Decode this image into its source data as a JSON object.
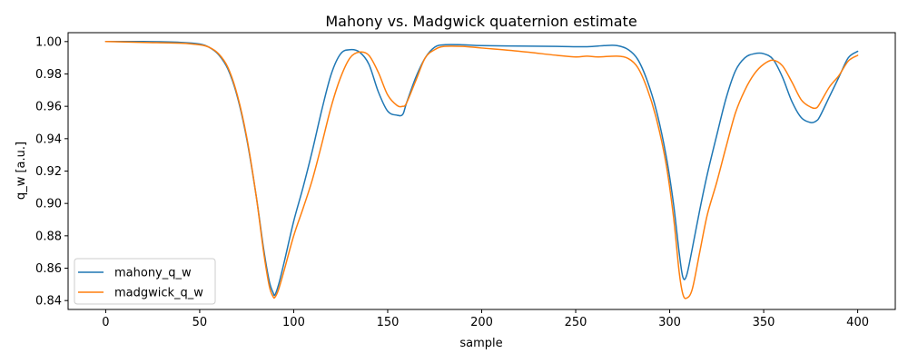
{
  "chart_data": {
    "type": "line",
    "title": "Mahony vs. Madgwick quaternion estimate",
    "xlabel": "sample",
    "ylabel": "q_w [a.u.]",
    "xlim": [
      -20,
      420
    ],
    "ylim": [
      0.8345,
      1.0055
    ],
    "xticks": [
      0,
      50,
      100,
      150,
      200,
      250,
      300,
      350,
      400
    ],
    "xtick_labels": [
      "0",
      "50",
      "100",
      "150",
      "200",
      "250",
      "300",
      "350",
      "400"
    ],
    "yticks": [
      0.84,
      0.86,
      0.88,
      0.9,
      0.92,
      0.94,
      0.96,
      0.98,
      1.0
    ],
    "ytick_labels": [
      "0.84",
      "0.86",
      "0.88",
      "0.90",
      "0.92",
      "0.94",
      "0.96",
      "0.98",
      "1.00"
    ],
    "grid": false,
    "legend_position": "lower-left",
    "series": [
      {
        "name": "mahony_q_w",
        "color": "#1f77b4",
        "x": [
          0,
          20,
          40,
          50,
          55,
          60,
          65,
          70,
          75,
          80,
          84,
          87,
          89,
          90,
          92,
          95,
          100,
          105,
          110,
          115,
          120,
          125,
          130,
          135,
          140,
          145,
          150,
          155,
          158,
          160,
          165,
          170,
          175,
          180,
          190,
          200,
          220,
          240,
          256,
          265,
          272,
          278,
          283,
          288,
          293,
          298,
          302,
          305,
          307,
          309,
          312,
          316,
          320,
          325,
          330,
          335,
          340,
          345,
          350,
          355,
          360,
          365,
          370,
          375,
          378,
          380,
          385,
          390,
          395,
          400
        ],
        "y": [
          1.0,
          1.0,
          0.9995,
          0.9985,
          0.9965,
          0.992,
          0.983,
          0.966,
          0.94,
          0.905,
          0.872,
          0.852,
          0.845,
          0.8435,
          0.85,
          0.864,
          0.889,
          0.91,
          0.933,
          0.958,
          0.98,
          0.9925,
          0.995,
          0.9935,
          0.986,
          0.969,
          0.957,
          0.9545,
          0.955,
          0.962,
          0.978,
          0.99,
          0.9965,
          0.998,
          0.998,
          0.9975,
          0.9972,
          0.997,
          0.9968,
          0.9975,
          0.9975,
          0.995,
          0.989,
          0.976,
          0.957,
          0.93,
          0.9,
          0.87,
          0.8545,
          0.8555,
          0.872,
          0.896,
          0.918,
          0.942,
          0.965,
          0.982,
          0.99,
          0.9925,
          0.9925,
          0.989,
          0.978,
          0.963,
          0.953,
          0.95,
          0.951,
          0.954,
          0.966,
          0.978,
          0.99,
          0.994
        ]
      },
      {
        "name": "madgwick_q_w",
        "color": "#ff7f0e",
        "x": [
          0,
          20,
          40,
          50,
          55,
          60,
          65,
          70,
          75,
          80,
          84,
          87,
          89,
          90,
          92,
          95,
          100,
          105,
          110,
          115,
          120,
          125,
          130,
          135,
          140,
          145,
          150,
          155,
          158,
          160,
          165,
          170,
          175,
          180,
          190,
          200,
          220,
          240,
          250,
          256,
          262,
          272,
          278,
          283,
          288,
          293,
          298,
          302,
          305,
          307,
          309,
          312,
          316,
          320,
          325,
          330,
          335,
          340,
          345,
          350,
          355,
          360,
          365,
          370,
          375,
          378,
          380,
          385,
          390,
          395,
          400
        ],
        "y": [
          1.0,
          0.9995,
          0.999,
          0.998,
          0.9965,
          0.9925,
          0.984,
          0.967,
          0.941,
          0.905,
          0.87,
          0.849,
          0.8425,
          0.842,
          0.847,
          0.859,
          0.88,
          0.897,
          0.915,
          0.937,
          0.96,
          0.978,
          0.99,
          0.9935,
          0.9915,
          0.981,
          0.967,
          0.9605,
          0.96,
          0.962,
          0.976,
          0.99,
          0.995,
          0.997,
          0.997,
          0.996,
          0.994,
          0.9915,
          0.9905,
          0.991,
          0.9905,
          0.991,
          0.9895,
          0.984,
          0.971,
          0.952,
          0.925,
          0.892,
          0.858,
          0.844,
          0.8415,
          0.847,
          0.87,
          0.893,
          0.913,
          0.935,
          0.956,
          0.97,
          0.98,
          0.986,
          0.9885,
          0.985,
          0.975,
          0.964,
          0.9595,
          0.959,
          0.962,
          0.972,
          0.979,
          0.988,
          0.9915
        ]
      }
    ]
  }
}
